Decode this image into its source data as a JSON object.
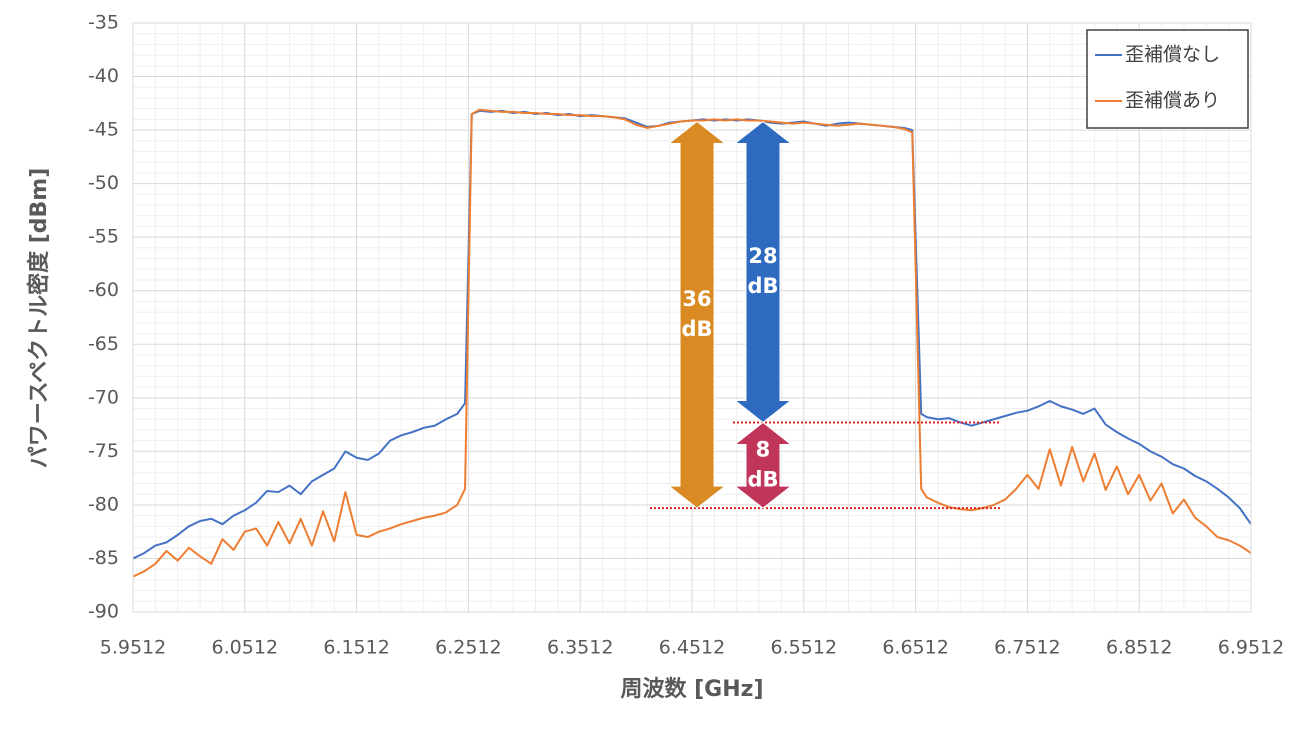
{
  "chart_data": {
    "type": "line",
    "xlabel": "周波数 [GHz]",
    "ylabel": "パワースペクトル密度 [dBm]",
    "xlim": [
      5.9512,
      6.9512
    ],
    "xticks": [
      5.9512,
      6.0512,
      6.1512,
      6.2512,
      6.3512,
      6.4512,
      6.5512,
      6.6512,
      6.7512,
      6.8512,
      6.9512
    ],
    "ylim": [
      -90,
      -35
    ],
    "yticks": [
      -90,
      -85,
      -80,
      -75,
      -70,
      -65,
      -60,
      -55,
      -50,
      -45,
      -40,
      -35
    ],
    "grid": true,
    "legend": "top-right",
    "x": [
      5.9512,
      5.9612,
      5.9712,
      5.9812,
      5.9912,
      6.0012,
      6.0112,
      6.0212,
      6.0312,
      6.0412,
      6.0512,
      6.0612,
      6.0712,
      6.0812,
      6.0912,
      6.1012,
      6.1112,
      6.1212,
      6.1312,
      6.1412,
      6.1512,
      6.1612,
      6.1712,
      6.1812,
      6.1912,
      6.2012,
      6.2112,
      6.2212,
      6.2312,
      6.2412,
      6.2482,
      6.2542,
      6.2612,
      6.2712,
      6.2812,
      6.2912,
      6.3012,
      6.3112,
      6.3212,
      6.3312,
      6.3412,
      6.3512,
      6.3612,
      6.3712,
      6.3812,
      6.3912,
      6.4012,
      6.4112,
      6.4212,
      6.4312,
      6.4412,
      6.4512,
      6.4612,
      6.4712,
      6.4812,
      6.4912,
      6.5012,
      6.5112,
      6.5212,
      6.5312,
      6.5412,
      6.5512,
      6.5612,
      6.5712,
      6.5812,
      6.5912,
      6.6012,
      6.6112,
      6.6212,
      6.6312,
      6.6412,
      6.6482,
      6.6562,
      6.6612,
      6.6712,
      6.6812,
      6.6912,
      6.7012,
      6.7112,
      6.7212,
      6.7312,
      6.7412,
      6.7512,
      6.7612,
      6.7712,
      6.7812,
      6.7912,
      6.8012,
      6.8112,
      6.8212,
      6.8312,
      6.8412,
      6.8512,
      6.8612,
      6.8712,
      6.8812,
      6.8912,
      6.9012,
      6.9112,
      6.9212,
      6.9312,
      6.9412,
      6.9512
    ],
    "series": [
      {
        "name": "歪補償なし",
        "color": "#4472c4",
        "values": [
          -85,
          -84.5,
          -83.8,
          -83.5,
          -82.8,
          -82,
          -81.5,
          -81.3,
          -81.8,
          -81,
          -80.5,
          -79.8,
          -78.7,
          -78.8,
          -78.2,
          -79,
          -77.8,
          -77.2,
          -76.6,
          -75,
          -75.6,
          -75.8,
          -75.2,
          -74,
          -73.5,
          -73.2,
          -72.8,
          -72.6,
          -72,
          -71.5,
          -70.5,
          -43.5,
          -43.2,
          -43.3,
          -43.2,
          -43.4,
          -43.3,
          -43.5,
          -43.4,
          -43.6,
          -43.5,
          -43.7,
          -43.6,
          -43.7,
          -43.8,
          -43.9,
          -44.3,
          -44.7,
          -44.6,
          -44.3,
          -44.2,
          -44.1,
          -44,
          -44.1,
          -44,
          -44.1,
          -44,
          -44.1,
          -44.3,
          -44.4,
          -44.3,
          -44.2,
          -44.4,
          -44.6,
          -44.4,
          -44.3,
          -44.4,
          -44.5,
          -44.6,
          -44.7,
          -44.8,
          -45,
          -71.5,
          -71.8,
          -72,
          -71.9,
          -72.3,
          -72.6,
          -72.3,
          -72,
          -71.7,
          -71.4,
          -71.2,
          -70.8,
          -70.3,
          -70.8,
          -71.1,
          -71.5,
          -71,
          -72.5,
          -73.2,
          -73.8,
          -74.3,
          -75,
          -75.5,
          -76.2,
          -76.6,
          -77.3,
          -77.8,
          -78.5,
          -79.3,
          -80.3,
          -81.8
        ]
      },
      {
        "name": "歪補償あり",
        "color": "#ed7d31",
        "values": [
          -86.7,
          -86.2,
          -85.5,
          -84.3,
          -85.2,
          -84,
          -84.8,
          -85.5,
          -83.2,
          -84.2,
          -82.5,
          -82.2,
          -83.8,
          -81.6,
          -83.6,
          -81.3,
          -83.8,
          -80.6,
          -83.4,
          -78.8,
          -82.8,
          -83,
          -82.5,
          -82.2,
          -81.8,
          -81.5,
          -81.2,
          -81,
          -80.7,
          -80,
          -78.5,
          -43.5,
          -43.1,
          -43.2,
          -43.3,
          -43.3,
          -43.4,
          -43.4,
          -43.5,
          -43.5,
          -43.6,
          -43.6,
          -43.7,
          -43.7,
          -43.8,
          -44,
          -44.5,
          -44.8,
          -44.6,
          -44.4,
          -44.2,
          -44.1,
          -44.1,
          -44,
          -44.1,
          -44,
          -44.1,
          -44.1,
          -44.2,
          -44.3,
          -44.4,
          -44.3,
          -44.4,
          -44.5,
          -44.6,
          -44.5,
          -44.4,
          -44.5,
          -44.6,
          -44.7,
          -44.9,
          -45.2,
          -78.5,
          -79.3,
          -79.8,
          -80.2,
          -80.4,
          -80.5,
          -80.3,
          -80,
          -79.5,
          -78.5,
          -77.2,
          -78.5,
          -74.8,
          -78.2,
          -74.6,
          -77.8,
          -75.2,
          -78.6,
          -76.4,
          -79,
          -77.2,
          -79.6,
          -78,
          -80.8,
          -79.5,
          -81.2,
          -82,
          -83,
          -83.3,
          -83.8,
          -84.5
        ]
      }
    ],
    "reference_lines": [
      {
        "y": -72.3,
        "x": [
          6.4879,
          6.7267
        ],
        "color": "#e02020"
      },
      {
        "y": -80.3,
        "x": [
          6.4136,
          6.7267
        ],
        "color": "#e02020"
      }
    ],
    "annotations": [
      {
        "text": [
          "36",
          "dB"
        ],
        "x": 6.4557,
        "from": -44.2,
        "to": -80.3,
        "color": "#d98a23"
      },
      {
        "text": [
          "28",
          "dB"
        ],
        "x": 6.5147,
        "from": -44.2,
        "to": -72.3,
        "color": "#2e6bc0"
      },
      {
        "text": [
          "8",
          "dB"
        ],
        "x": 6.5147,
        "from": -72.3,
        "to": -80.3,
        "color": "#c0365a"
      }
    ]
  }
}
